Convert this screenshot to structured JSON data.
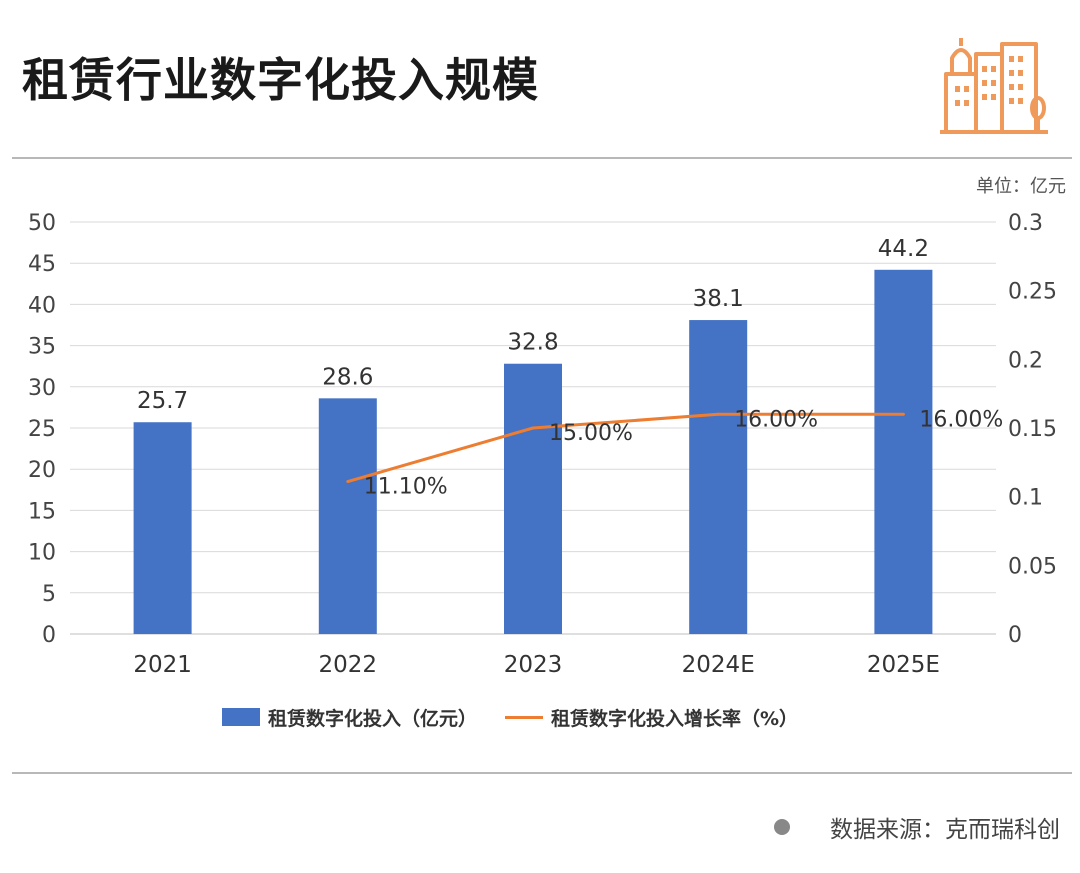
{
  "header": {
    "title": "租赁行业数字化投入规模",
    "logo_icon": "city-buildings-icon",
    "logo_color": "#ef9a5b"
  },
  "unit_label": "单位：亿元",
  "source_label": "数据来源：克而瑞科创",
  "colors": {
    "bar": "#4472c4",
    "line": "#ed7d31",
    "grid": "#d9d9d9"
  },
  "chart_data": {
    "type": "bar",
    "title": "租赁行业数字化投入规模",
    "categories": [
      "2021",
      "2022",
      "2023",
      "2024E",
      "2025E"
    ],
    "series": [
      {
        "name": "租赁数字化投入（亿元）",
        "type": "bar",
        "axis": "left",
        "values": [
          25.7,
          28.6,
          32.8,
          38.1,
          44.2
        ],
        "labels": [
          "25.7",
          "28.6",
          "32.8",
          "38.1",
          "44.2"
        ]
      },
      {
        "name": "租赁数字化投入增长率（%）",
        "type": "line",
        "axis": "right",
        "values": [
          null,
          0.111,
          0.15,
          0.16,
          0.16
        ],
        "labels": [
          "",
          "11.10%",
          "15.00%",
          "16.00%",
          "16.00%"
        ]
      }
    ],
    "y_left": {
      "min": 0,
      "max": 50,
      "ticks": [
        "0",
        "5",
        "10",
        "15",
        "20",
        "25",
        "30",
        "35",
        "40",
        "45",
        "50"
      ]
    },
    "y_right": {
      "min": 0,
      "max": 0.3,
      "ticks": [
        "0",
        "0.05",
        "0.1",
        "0.15",
        "0.2",
        "0.25",
        "0.3"
      ]
    },
    "legend_position": "bottom",
    "grid": true
  }
}
